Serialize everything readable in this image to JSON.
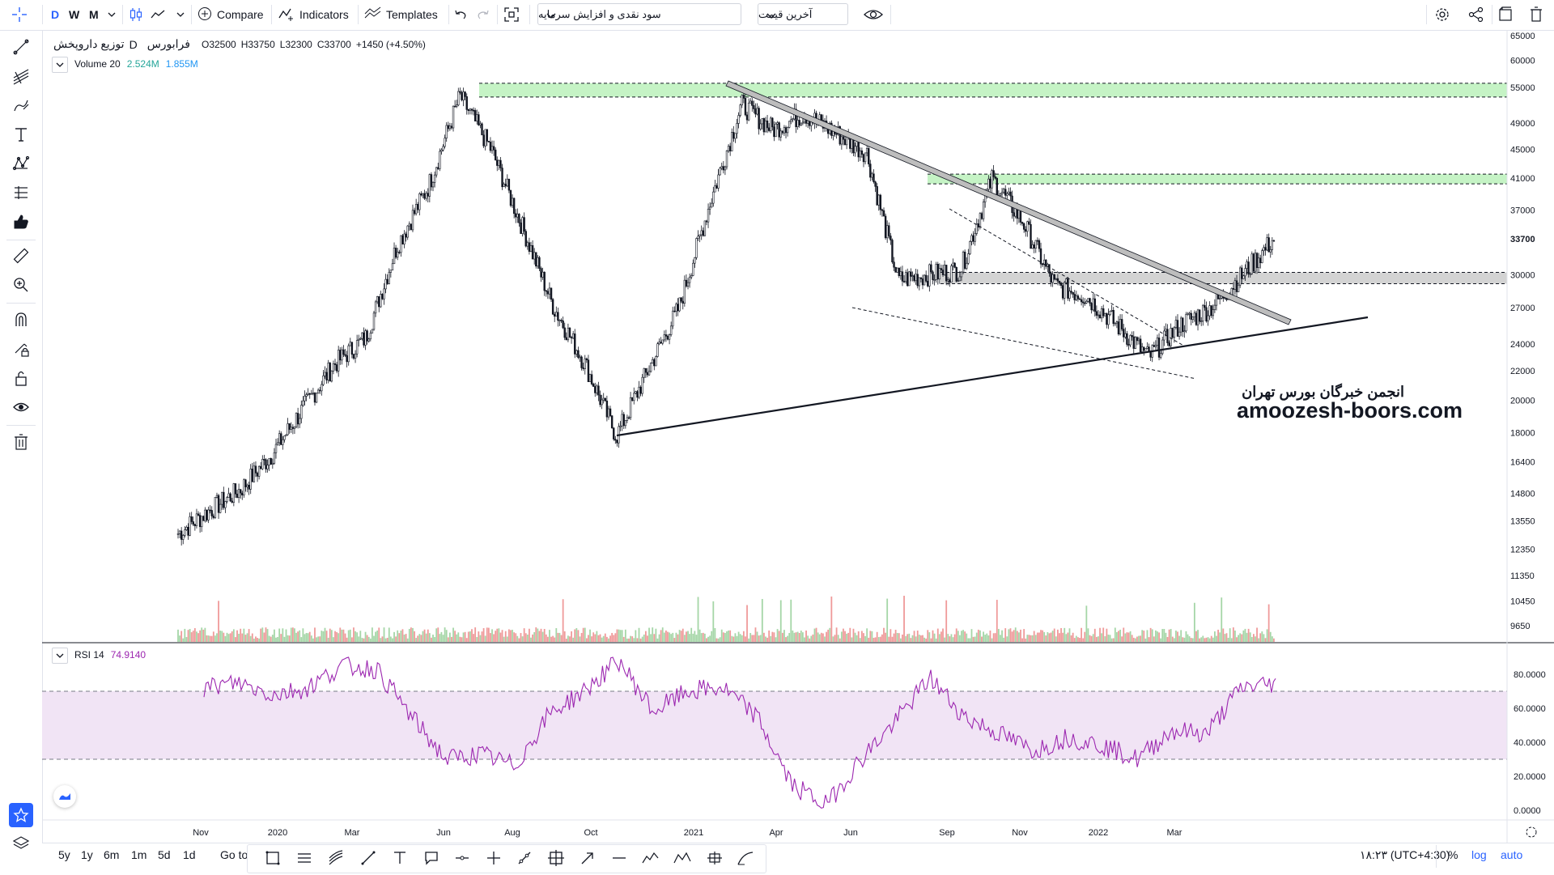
{
  "toolbar": {
    "intervals": [
      "D",
      "W",
      "M"
    ],
    "compare": "Compare",
    "indicators": "Indicators",
    "templates": "Templates",
    "select1": "سود نقدی و افزایش سرمایه",
    "select2": "آخرین قیمت"
  },
  "legend": {
    "name": "توزیع داروپخش",
    "interval": "D",
    "exchange": "فرابورس",
    "o_label": "O",
    "o": "32500",
    "h_label": "H",
    "h": "33750",
    "l_label": "L",
    "l": "32300",
    "c_label": "C",
    "c": "33700",
    "change": "+1450 (+4.50%)",
    "volume_label": "Volume 20",
    "volume_v1": "2.524M",
    "volume_v2": "1.855M",
    "rsi_label": "RSI 14",
    "rsi_value": "74.9140"
  },
  "watermark": {
    "fa": "انجمن خبرگان بورس تهران",
    "en": "amoozesh-boors.com"
  },
  "bottom": {
    "ranges": [
      "5y",
      "1y",
      "6m",
      "1m",
      "5d",
      "1d"
    ],
    "goto": "Go to",
    "time": "۱۸:۲۳ (UTC+4:30)",
    "pct": "%",
    "log": "log",
    "auto": "auto"
  },
  "colors": {
    "accent": "#2962ff",
    "up_volume": "#a5d6a7",
    "down_volume": "#ef9a9a",
    "rsi_line": "#9c27b0",
    "rsi_band": "#f1e4f5",
    "zone_green": "#b7f0b7"
  },
  "chart_data": {
    "type": "candlestick",
    "scale": "log",
    "price_axis": [
      "65000",
      "60000",
      "55000",
      "49000",
      "45000",
      "41000",
      "37000",
      "33700",
      "30000",
      "27000",
      "24000",
      "22000",
      "20000",
      "18000",
      "16400",
      "14800",
      "13550",
      "12350",
      "11350",
      "10450",
      "9650"
    ],
    "rsi_axis": [
      "80.0000",
      "60.0000",
      "40.0000",
      "20.0000",
      "0.0000"
    ],
    "x_labels": [
      "Nov",
      "2020",
      "Mar",
      "Jun",
      "Aug",
      "Oct",
      "2021",
      "Apr",
      "Jun",
      "Sep",
      "Nov",
      "2022",
      "Mar"
    ],
    "last_price": "33700",
    "price_path": [
      [
        "Oct 2019",
        13000
      ],
      [
        "Nov 2019",
        14000
      ],
      [
        "Dec 2019",
        15000
      ],
      [
        "Jan 2020",
        16800
      ],
      [
        "Feb 2020",
        19500
      ],
      [
        "Mar 2020",
        22500
      ],
      [
        "Apr 2020",
        24500
      ],
      [
        "May 2020",
        33000
      ],
      [
        "early Jun 2020",
        40000
      ],
      [
        "mid Jun 2020",
        53500
      ],
      [
        "Jul 2020",
        45000
      ],
      [
        "Aug 2020",
        35000
      ],
      [
        "Sep 2020",
        27000
      ],
      [
        "early Oct 2020",
        22500
      ],
      [
        "late Oct 2020",
        17800
      ],
      [
        "Nov 2020",
        22000
      ],
      [
        "Dec 2020",
        27000
      ],
      [
        "early Jan 2021",
        38000
      ],
      [
        "mid Jan 2021",
        52000
      ],
      [
        "Feb 2021",
        48000
      ],
      [
        "Mar 2021",
        50500
      ],
      [
        "Apr 2021",
        47500
      ],
      [
        "May 2021",
        44500
      ],
      [
        "Jun 2021",
        29500
      ],
      [
        "Jul 2021",
        30000
      ],
      [
        "Aug 2021",
        30500
      ],
      [
        "Sep 2021",
        41000
      ],
      [
        "Oct 2021",
        35500
      ],
      [
        "Nov 2021",
        29000
      ],
      [
        "Dec 2021",
        28000
      ],
      [
        "Jan 2022",
        25500
      ],
      [
        "Feb 2022",
        23000
      ],
      [
        "early Mar 2022",
        25500
      ],
      [
        "late Mar 2022",
        27000
      ],
      [
        "Apr 2022",
        30000
      ],
      [
        "May 2022",
        33700
      ]
    ],
    "rsi_path": [
      [
        "Dec 2019",
        72
      ],
      [
        "Feb 2020",
        75
      ],
      [
        "Mar 2020",
        68
      ],
      [
        "Apr 2020",
        72
      ],
      [
        "May 2020",
        85
      ],
      [
        "Jun 2020",
        83
      ],
      [
        "Jul 2020",
        55
      ],
      [
        "Aug 2020",
        30
      ],
      [
        "Sep 2020",
        33
      ],
      [
        "Oct 2020",
        26
      ],
      [
        "Nov 2020",
        57
      ],
      [
        "Dec 2020",
        70
      ],
      [
        "Jan 2021",
        88
      ],
      [
        "Feb 2021",
        58
      ],
      [
        "Mar 2021",
        70
      ],
      [
        "Apr 2021",
        72
      ],
      [
        "May 2021",
        55
      ],
      [
        "Jun 2021",
        15
      ],
      [
        "early Jul 2021",
        3
      ],
      [
        "late Jul 2021",
        30
      ],
      [
        "Aug 2021",
        52
      ],
      [
        "early Sep 2021",
        78
      ],
      [
        "late Sep 2021",
        55
      ],
      [
        "Oct 2021",
        45
      ],
      [
        "Nov 2021",
        35
      ],
      [
        "Dec 2021",
        43
      ],
      [
        "Jan 2022",
        38
      ],
      [
        "Feb 2022",
        30
      ],
      [
        "early Mar 2022",
        47
      ],
      [
        "late Mar 2022",
        45
      ],
      [
        "Apr 2022",
        72
      ],
      [
        "May 2022",
        75
      ]
    ],
    "rsi_band": [
      30,
      70
    ]
  }
}
